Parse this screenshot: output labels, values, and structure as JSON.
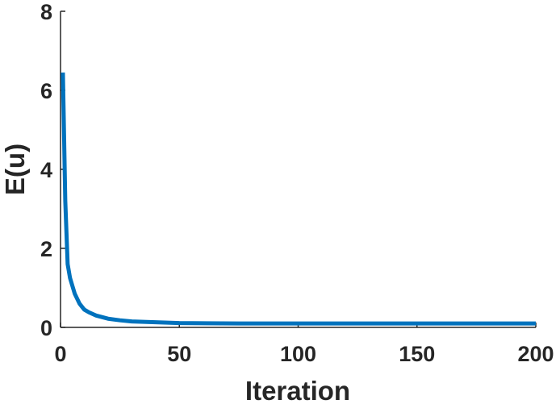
{
  "chart_data": {
    "type": "line",
    "xlabel": "Iteration",
    "ylabel": "E(u)",
    "x": [
      1,
      2,
      3,
      4,
      5,
      6,
      8,
      10,
      12,
      15,
      20,
      25,
      30,
      40,
      50,
      75,
      100,
      150,
      200
    ],
    "series": [
      {
        "color": "#0072bd",
        "values": [
          6.45,
          3.2,
          1.6,
          1.25,
          1.05,
          0.85,
          0.6,
          0.45,
          0.38,
          0.3,
          0.22,
          0.18,
          0.15,
          0.13,
          0.11,
          0.1,
          0.1,
          0.1,
          0.1
        ]
      }
    ],
    "xlim": [
      0,
      200
    ],
    "xticks": [
      0,
      50,
      100,
      150,
      200
    ],
    "ylim": [
      0,
      8
    ],
    "yticks": [
      0,
      2,
      4,
      6,
      8
    ],
    "grid": false
  }
}
